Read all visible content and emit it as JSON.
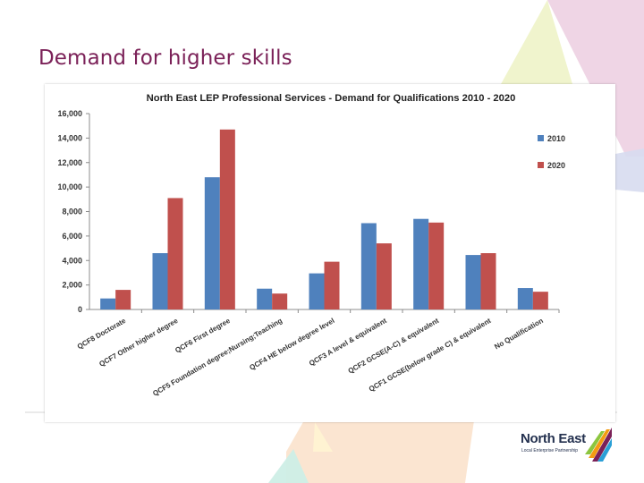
{
  "slide": {
    "title": "Demand for higher skills"
  },
  "logo": {
    "name": "North East",
    "tagline": "Local Enterprise Partnership"
  },
  "colors": {
    "title": "#7b2158",
    "series_2010": "#4f81bd",
    "series_2020": "#c0504d"
  },
  "chart_data": {
    "type": "bar",
    "title": "North East LEP Professional Services - Demand for Qualifications 2010 - 2020",
    "xlabel": "",
    "ylabel": "",
    "ylim": [
      0,
      16000
    ],
    "yticks": [
      "0",
      "2,000",
      "4,000",
      "6,000",
      "8,000",
      "10,000",
      "12,000",
      "14,000",
      "16,000"
    ],
    "grid": false,
    "legend": "right",
    "categories": [
      "QCF8 Doctorate",
      "QCF7 Other higher degree",
      "QCF6 First degree",
      "QCF5 Foundation degree;Nursing;Teaching",
      "QCF4 HE below degree level",
      "QCF3 A level & equivalent",
      "QCF2 GCSE(A-C) & equivalent",
      "QCF1 GCSE(below grade C) & equivalent",
      "No Qualification"
    ],
    "series": [
      {
        "name": "2010",
        "color": "#4f81bd",
        "values": [
          900,
          4600,
          10800,
          1700,
          2950,
          7050,
          7400,
          4450,
          1750
        ]
      },
      {
        "name": "2020",
        "color": "#c0504d",
        "values": [
          1600,
          9100,
          14700,
          1300,
          3900,
          5400,
          7100,
          4600,
          1450
        ]
      }
    ]
  }
}
